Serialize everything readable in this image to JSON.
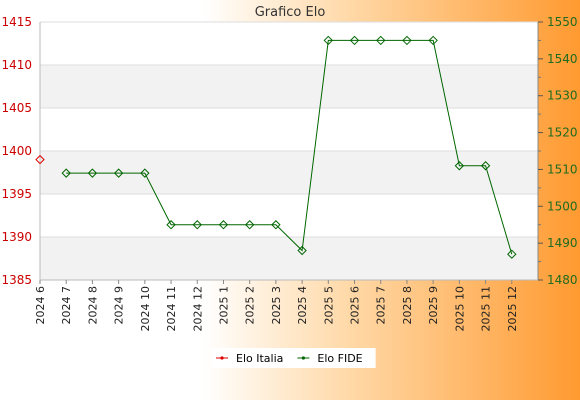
{
  "chart_data": {
    "type": "line",
    "title": "Grafico Elo",
    "categories": [
      "2024 6",
      "2024 7",
      "2024 8",
      "2024 9",
      "2024 10",
      "2024 11",
      "2024 12",
      "2025 1",
      "2025 2",
      "2025 3",
      "2025 4",
      "2025 5",
      "2025 6",
      "2025 7",
      "2025 8",
      "2025 9",
      "2025 10",
      "2025 11",
      "2025 12"
    ],
    "y_left": {
      "ylim": [
        1385,
        1415
      ],
      "ticks": [
        1385,
        1390,
        1395,
        1400,
        1405,
        1410,
        1415
      ],
      "color": "#cc0000"
    },
    "y_right": {
      "ylim": [
        1480,
        1550
      ],
      "ticks": [
        1480,
        1490,
        1500,
        1510,
        1520,
        1530,
        1540,
        1550
      ],
      "color": "#1f6b1f"
    },
    "series": [
      {
        "name": "Elo Italia",
        "axis": "left",
        "color": "#dd0000",
        "values": [
          1399,
          null,
          null,
          null,
          null,
          null,
          null,
          null,
          null,
          null,
          null,
          null,
          null,
          null,
          null,
          null,
          null,
          null,
          null
        ]
      },
      {
        "name": "Elo FIDE",
        "axis": "right",
        "color": "#006600",
        "values": [
          null,
          1509,
          1509,
          1509,
          1509,
          1495,
          1495,
          1495,
          1495,
          1495,
          1488,
          1545,
          1545,
          1545,
          1545,
          1545,
          1511,
          1511,
          1487
        ]
      }
    ],
    "grid": true,
    "legend": "bottom-center"
  }
}
